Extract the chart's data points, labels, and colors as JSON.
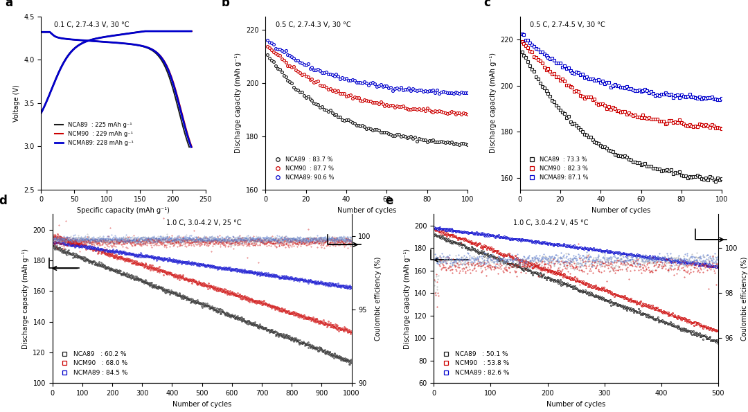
{
  "panel_a": {
    "label": "a",
    "title": "0.1 C, 2.7-4.3 V, 30 °C",
    "xlabel": "Specific capacity (mAh g⁻¹)",
    "ylabel": "Voltage (V)",
    "xlim": [
      0,
      250
    ],
    "ylim": [
      2.5,
      4.5
    ],
    "yticks": [
      2.5,
      3.0,
      3.5,
      4.0,
      4.5
    ],
    "xticks": [
      0,
      50,
      100,
      150,
      200,
      250
    ],
    "legend": [
      {
        "label": "NCA89  : 225 mAh g⁻¹",
        "color": "#1a1a1a"
      },
      {
        "label": "NCM90  : 229 mAh g⁻¹",
        "color": "#cc0000"
      },
      {
        "label": "NCMA89: 228 mAh g⁻¹",
        "color": "#0000cc"
      }
    ]
  },
  "panel_b": {
    "label": "b",
    "title": "0.5 C, 2.7-4.3 V, 30 °C",
    "xlabel": "Number of cycles",
    "ylabel": "Discharge capacity (mAh g⁻¹)",
    "xlim": [
      0,
      100
    ],
    "ylim": [
      160,
      225
    ],
    "yticks": [
      160,
      180,
      200,
      220
    ],
    "xticks": [
      0,
      20,
      40,
      60,
      80,
      100
    ],
    "legend": [
      {
        "label": "NCA89  : 83.7 %",
        "color": "#1a1a1a"
      },
      {
        "label": "NCM90  : 87.7 %",
        "color": "#cc0000"
      },
      {
        "label": "NCMA89: 90.6 %",
        "color": "#0000cc"
      }
    ]
  },
  "panel_c": {
    "label": "c",
    "title": "0.5 C, 2.7-4.5 V, 30 °C",
    "xlabel": "Number of cycles",
    "ylabel": "Discharge capacity (mAh g⁻¹)",
    "xlim": [
      0,
      100
    ],
    "ylim": [
      155,
      230
    ],
    "yticks": [
      160,
      180,
      200,
      220
    ],
    "xticks": [
      0,
      20,
      40,
      60,
      80,
      100
    ],
    "legend": [
      {
        "label": "NCA89  : 73.3 %",
        "color": "#1a1a1a"
      },
      {
        "label": "NCM90  : 82.3 %",
        "color": "#cc0000"
      },
      {
        "label": "NCMA89: 87.1 %",
        "color": "#0000cc"
      }
    ]
  },
  "panel_d": {
    "label": "d",
    "title": "1.0 C, 3.0-4.2 V, 25 °C",
    "xlabel": "Number of cycles",
    "ylabel": "Discharge capacity (mAh g⁻¹)",
    "ylabel2": "Coulombic efficiency (%)",
    "xlim": [
      0,
      1000
    ],
    "ylim": [
      100,
      210
    ],
    "ylim2": [
      90,
      101.5
    ],
    "yticks": [
      100,
      120,
      140,
      160,
      180,
      200
    ],
    "yticks2": [
      90,
      95,
      100
    ],
    "xticks": [
      0,
      100,
      200,
      300,
      400,
      500,
      600,
      700,
      800,
      900,
      1000
    ],
    "legend": [
      {
        "label": "NCA89   : 60.2 %",
        "color": "#1a1a1a"
      },
      {
        "label": "NCM90   : 68.0 %",
        "color": "#cc0000"
      },
      {
        "label": "NCMA89 : 84.5 %",
        "color": "#0000cc"
      }
    ],
    "nca_start": 189,
    "nca_end": 113.8,
    "ncm_start": 196,
    "ncm_end": 133.3,
    "ncma_start": 192,
    "ncma_end": 162.2
  },
  "panel_e": {
    "label": "e",
    "title": "1.0 C, 3.0-4.2 V, 45 °C",
    "xlabel": "Number of cycles",
    "ylabel": "Discharge capacity (mAh g⁻¹)",
    "ylabel2": "Coulombic efficiency (%)",
    "xlim": [
      0,
      500
    ],
    "ylim": [
      60,
      210
    ],
    "ylim2": [
      94,
      101.5
    ],
    "yticks": [
      60,
      80,
      100,
      120,
      140,
      160,
      180,
      200
    ],
    "yticks2": [
      96,
      98,
      100
    ],
    "xticks": [
      0,
      100,
      200,
      300,
      400,
      500
    ],
    "legend": [
      {
        "label": "NCA89   : 50.1 %",
        "color": "#1a1a1a"
      },
      {
        "label": "NCM90   : 53.8 %",
        "color": "#cc0000"
      },
      {
        "label": "NCMA89 : 82.6 %",
        "color": "#0000cc"
      }
    ],
    "nca_start": 192,
    "nca_end": 96.2,
    "ncm_start": 197,
    "ncm_end": 106.0,
    "ncma_start": 198,
    "ncma_end": 163.5
  },
  "colors": {
    "black": "#1a1a1a",
    "red": "#cc0000",
    "blue": "#0000cc",
    "gray": "#888888",
    "lightblue": "#6699bb"
  }
}
